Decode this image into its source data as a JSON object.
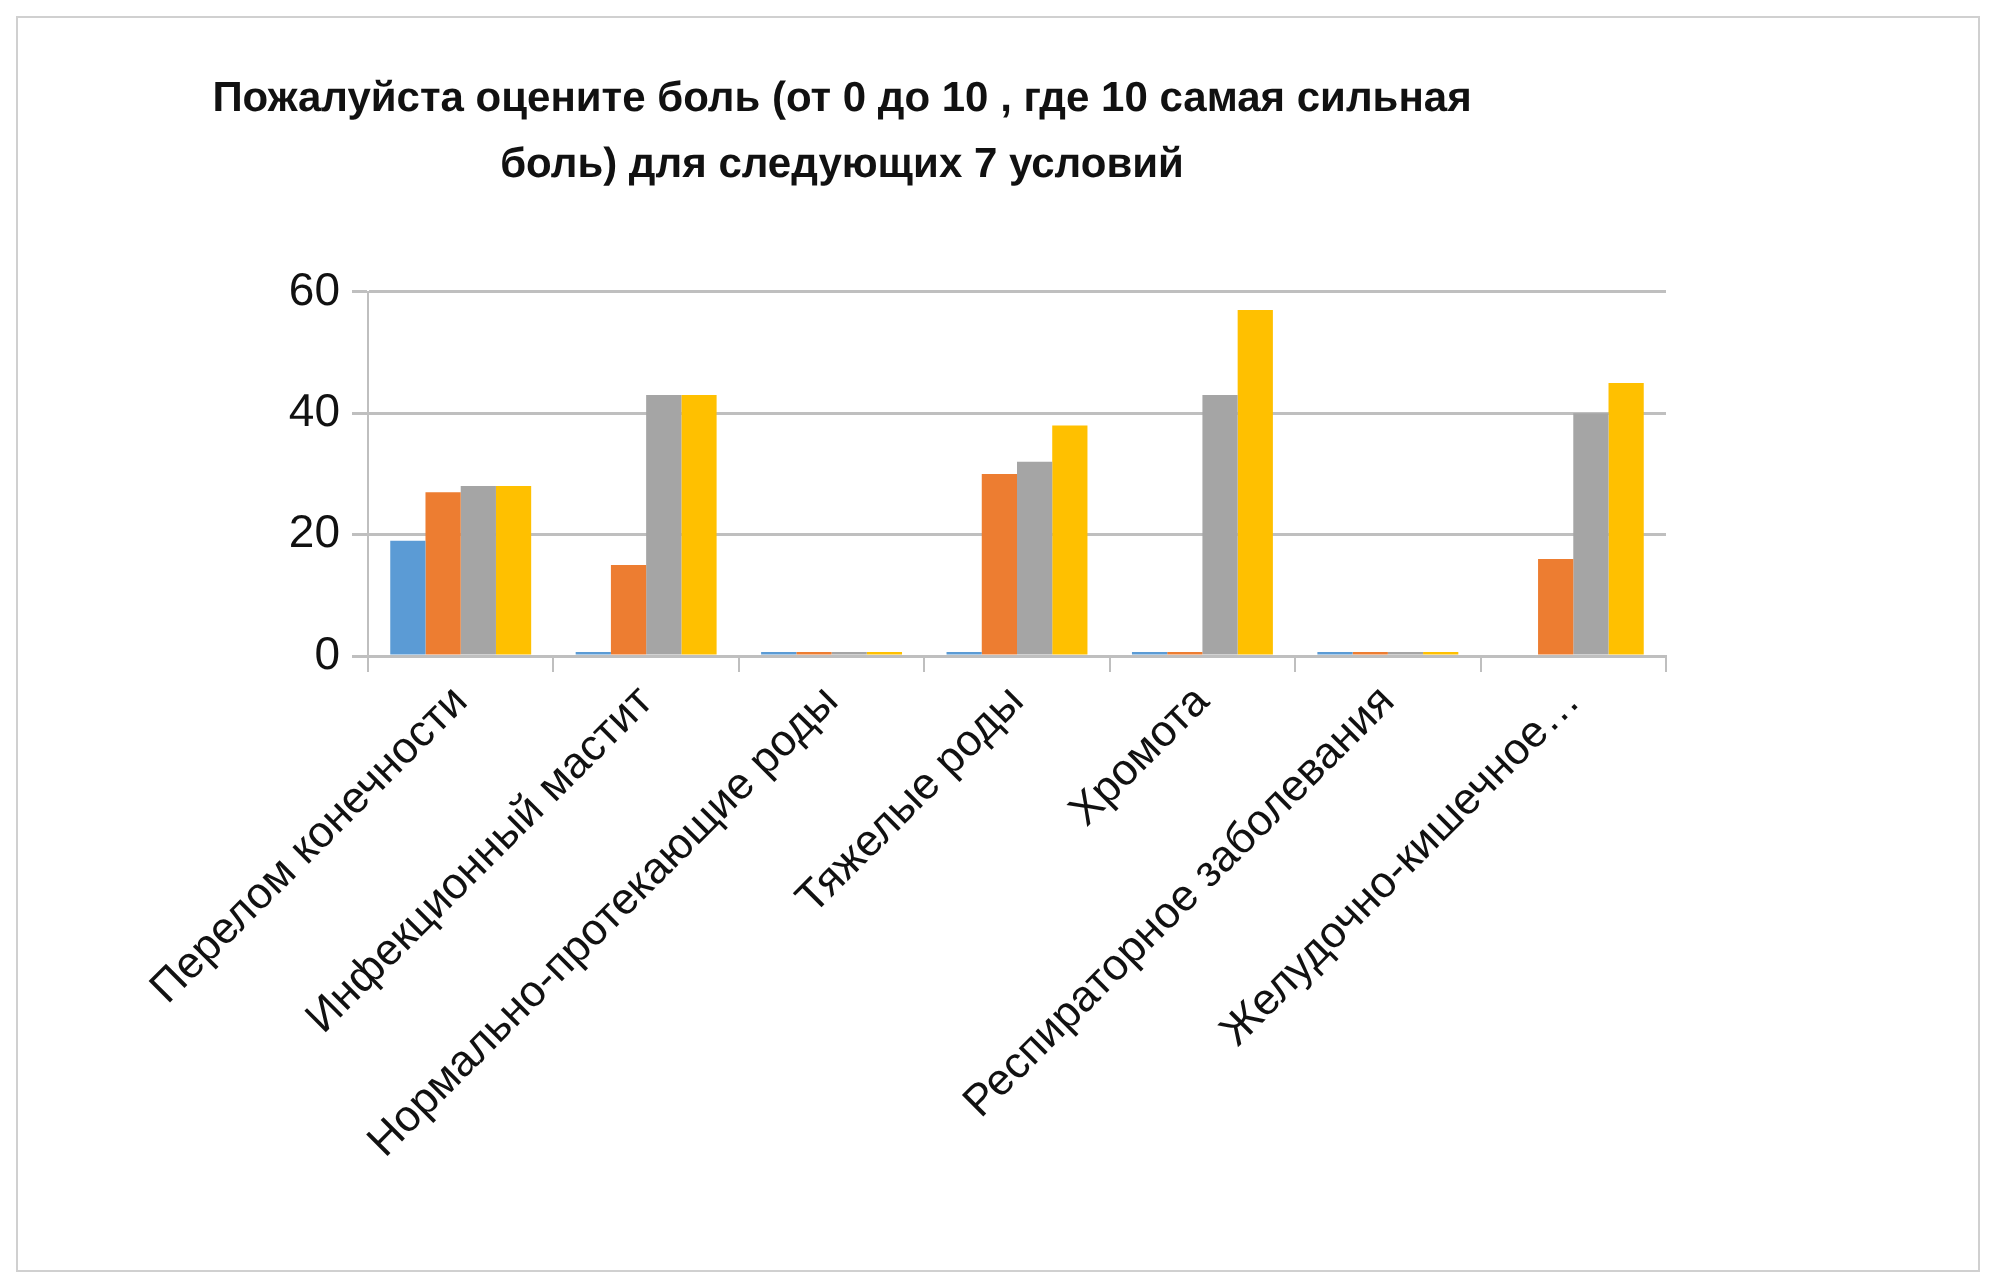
{
  "chart_data": {
    "type": "bar",
    "title": "Пожалуйста оцените боль (от 0 до 10 , где 10 самая сильная боль) для следующих 7 условий",
    "categories": [
      "Перелом конечности",
      "Инфекционный мастит",
      "Нормально-протекающие роды",
      "Тяжелые роды",
      "Хромота",
      "Респираторное заболевания",
      "Желудочно-кишечное…"
    ],
    "series": [
      {
        "color": "#5b9bd5",
        "values": [
          19,
          0,
          0,
          0,
          0,
          0,
          null
        ]
      },
      {
        "color": "#ed7d31",
        "values": [
          27,
          15,
          0,
          30,
          0,
          0,
          16
        ]
      },
      {
        "color": "#a5a5a5",
        "values": [
          28,
          43,
          0,
          32,
          43,
          0,
          40
        ]
      },
      {
        "color": "#ffc000",
        "values": [
          28,
          43,
          0,
          38,
          57,
          0,
          45
        ]
      }
    ],
    "ylim": [
      0,
      60
    ],
    "yticks": [
      0,
      20,
      40,
      60
    ],
    "grid": "y",
    "legend": false
  }
}
